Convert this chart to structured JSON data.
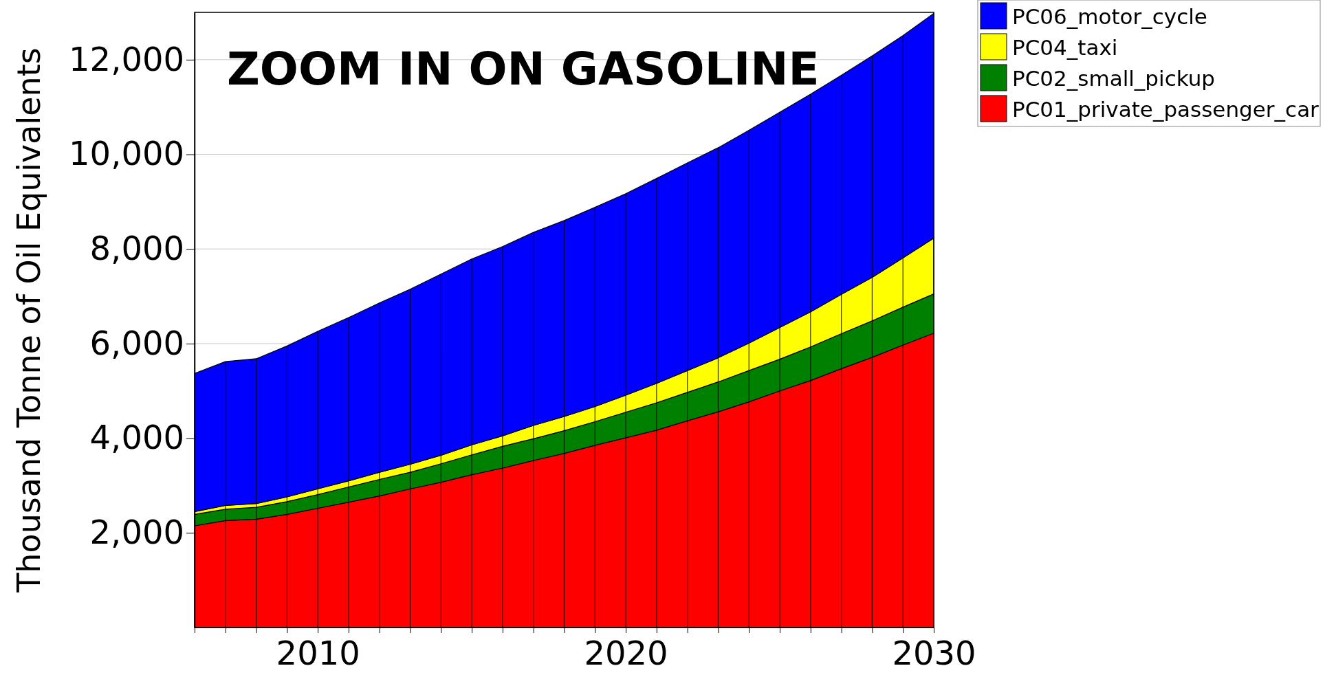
{
  "chart_data": {
    "type": "area",
    "stacked": true,
    "x": [
      2006,
      2007,
      2008,
      2009,
      2010,
      2011,
      2012,
      2013,
      2014,
      2015,
      2016,
      2017,
      2018,
      2019,
      2020,
      2021,
      2022,
      2023,
      2024,
      2025,
      2026,
      2027,
      2028,
      2029,
      2030
    ],
    "ylabel": "Thousand Tonne of Oil Equivalents",
    "annotations": [
      "ZOOM IN ON GASOLINE"
    ],
    "xlim": [
      2006,
      2030
    ],
    "xticks": [
      {
        "value": 2006,
        "label": null
      },
      {
        "value": 2007,
        "label": null
      },
      {
        "value": 2008,
        "label": null
      },
      {
        "value": 2009,
        "label": null
      },
      2010,
      {
        "value": 2011,
        "label": null
      },
      {
        "value": 2012,
        "label": null
      },
      {
        "value": 2013,
        "label": null
      },
      {
        "value": 2014,
        "label": null
      },
      {
        "value": 2015,
        "label": null
      },
      {
        "value": 2016,
        "label": null
      },
      {
        "value": 2017,
        "label": null
      },
      {
        "value": 2018,
        "label": null
      },
      {
        "value": 2019,
        "label": null
      },
      2020,
      {
        "value": 2021,
        "label": null
      },
      {
        "value": 2022,
        "label": null
      },
      {
        "value": 2023,
        "label": null
      },
      {
        "value": 2024,
        "label": null
      },
      {
        "value": 2025,
        "label": null
      },
      {
        "value": 2026,
        "label": null
      },
      {
        "value": 2027,
        "label": null
      },
      {
        "value": 2028,
        "label": null
      },
      {
        "value": 2029,
        "label": null
      },
      2030
    ],
    "ylim": [
      0,
      13000
    ],
    "yticks": [
      {
        "value": 2000,
        "label": "2,000"
      },
      {
        "value": 4000,
        "label": "4,000"
      },
      {
        "value": 6000,
        "label": "6,000"
      },
      {
        "value": 8000,
        "label": "8,000"
      },
      {
        "value": 10000,
        "label": "10,000"
      },
      {
        "value": 12000,
        "label": "12,000"
      }
    ],
    "grid": true,
    "legend": "top right",
    "series": [
      {
        "name": "PC01_private_passenger_car",
        "color": "#ff0000",
        "values": [
          2150,
          2260,
          2290,
          2390,
          2520,
          2650,
          2780,
          2930,
          3070,
          3230,
          3370,
          3530,
          3680,
          3850,
          4010,
          4170,
          4370,
          4560,
          4770,
          5000,
          5220,
          5470,
          5710,
          5970,
          6220
        ]
      },
      {
        "name": "PC02_small_pickup",
        "color": "#008000",
        "values": [
          240,
          240,
          250,
          270,
          290,
          320,
          350,
          350,
          390,
          420,
          460,
          460,
          480,
          500,
          540,
          580,
          600,
          630,
          660,
          670,
          710,
          740,
          770,
          800,
          830
        ]
      },
      {
        "name": "PC04_taxi",
        "color": "#ffff00",
        "values": [
          60,
          80,
          80,
          100,
          120,
          130,
          150,
          170,
          180,
          210,
          220,
          280,
          300,
          320,
          360,
          410,
          460,
          510,
          580,
          670,
          740,
          830,
          920,
          1040,
          1180
        ]
      },
      {
        "name": "PC06_motor_cycle",
        "color": "#0000ff",
        "values": [
          2920,
          3040,
          3060,
          3190,
          3330,
          3450,
          3580,
          3700,
          3830,
          3930,
          4000,
          4080,
          4140,
          4210,
          4260,
          4330,
          4390,
          4440,
          4500,
          4550,
          4600,
          4630,
          4680,
          4700,
          4750
        ]
      }
    ]
  }
}
